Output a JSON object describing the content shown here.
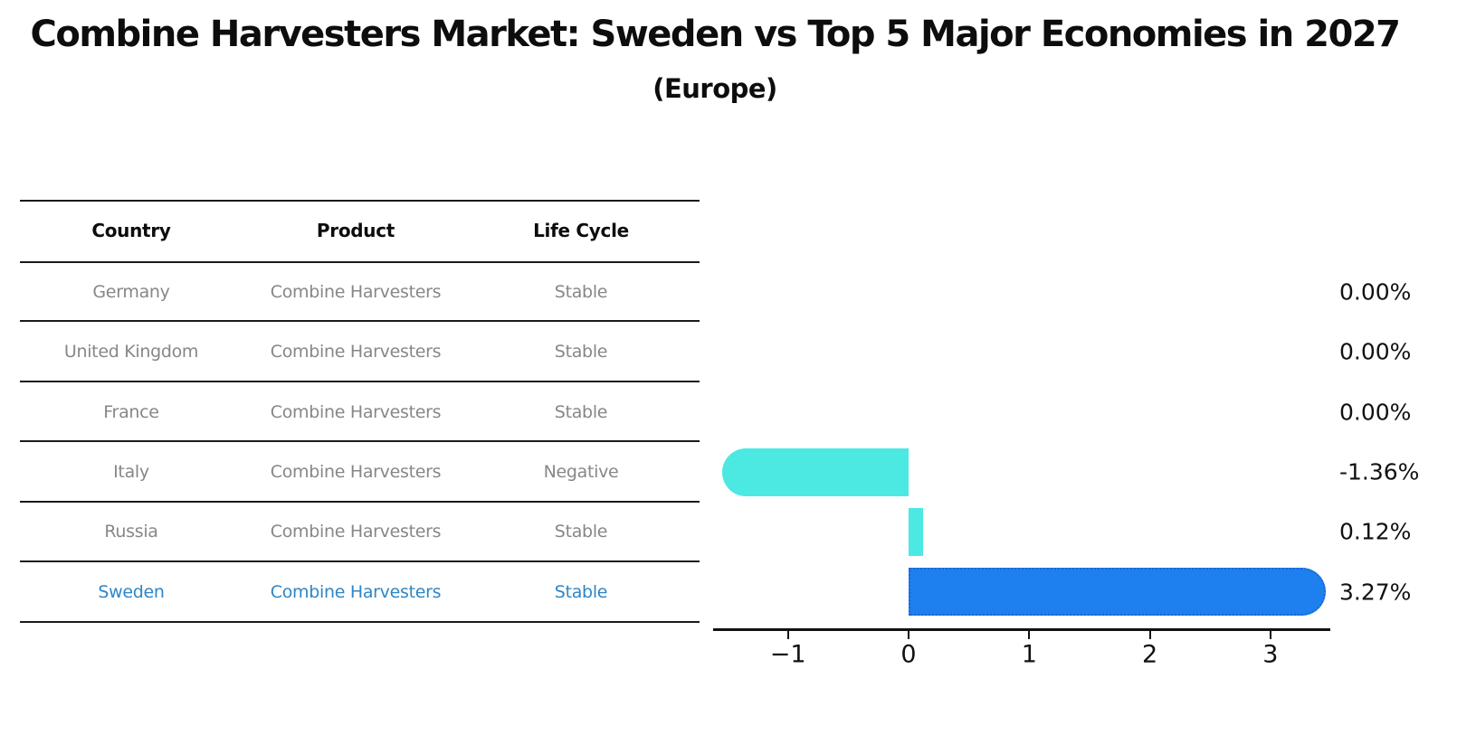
{
  "table": {
    "headers": [
      "Country",
      "Product",
      "Life Cycle"
    ],
    "rows": [
      {
        "country": "Germany",
        "product": "Combine Harvesters",
        "life_cycle": "Stable"
      },
      {
        "country": "United Kingdom",
        "product": "Combine Harvesters",
        "life_cycle": "Stable"
      },
      {
        "country": "France",
        "product": "Combine Harvesters",
        "life_cycle": "Stable"
      },
      {
        "country": "Italy",
        "product": "Combine Harvesters",
        "life_cycle": "Negative"
      },
      {
        "country": "Russia",
        "product": "Combine Harvesters",
        "life_cycle": "Stable"
      },
      {
        "country": "Sweden",
        "product": "Combine Harvesters",
        "life_cycle": "Stable"
      }
    ],
    "text_color": "#878787",
    "highlight_text_color": "#2e86c8"
  },
  "chart_data": {
    "type": "bar",
    "orientation": "horizontal",
    "title": "Combine Harvesters Market: Sweden vs Top 5 Major Economies in 2027",
    "subtitle": "(Europe)",
    "categories": [
      "Germany",
      "United Kingdom",
      "France",
      "Italy",
      "Russia",
      "Sweden"
    ],
    "values": [
      0.0,
      0.0,
      0.0,
      -1.36,
      0.12,
      3.27
    ],
    "value_labels": [
      "0.00%",
      "0.00%",
      "0.00%",
      "-1.36%",
      "0.12%",
      "3.27%"
    ],
    "xticks": [
      -1,
      0,
      1,
      2,
      3
    ],
    "xtick_labels": [
      "−1",
      "0",
      "1",
      "2",
      "3"
    ],
    "xlim": [
      -1.62,
      3.5
    ],
    "grid": false,
    "legend": false,
    "highlight_index": 5,
    "bar_color_default": "#4BE9E1",
    "bar_color_highlight": "#1E80EE",
    "highlight_border_color": "#1A66D9",
    "axis_color": "#111111"
  }
}
